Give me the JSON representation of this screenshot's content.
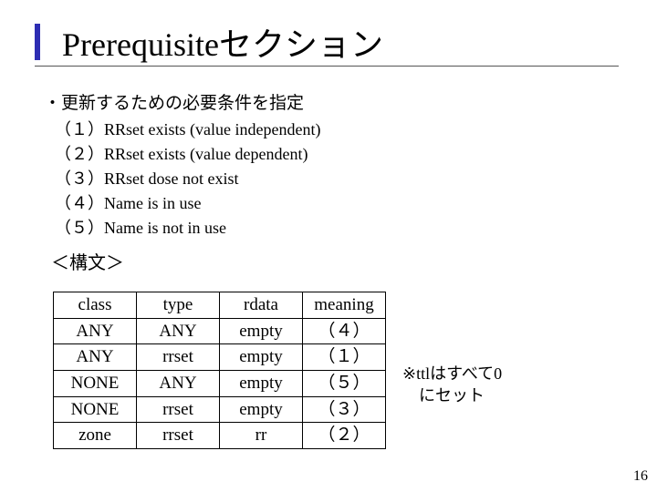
{
  "title": "Prerequisiteセクション",
  "lead": "・更新するための必要条件を指定",
  "items": [
    "（１）RRset exists (value independent)",
    "（２）RRset exists (value dependent)",
    "（３）RRset dose not exist",
    "（４）Name is in use",
    "（５）Name is not in use"
  ],
  "syntax_label": "＜構文＞",
  "table": {
    "columns": [
      "class",
      "type",
      "rdata",
      "meaning"
    ],
    "rows": [
      [
        "ANY",
        "ANY",
        "empty",
        "（４）"
      ],
      [
        "ANY",
        "rrset",
        "empty",
        "（１）"
      ],
      [
        "NONE",
        "ANY",
        "empty",
        "（５）"
      ],
      [
        "NONE",
        "rrset",
        "empty",
        "（３）"
      ],
      [
        "zone",
        "rrset",
        "rr",
        "（２）"
      ]
    ]
  },
  "note_line1": "※ttlはすべて0",
  "note_line2": "　にセット",
  "page_number": "16",
  "colors": {
    "accent_bar": "#2d2db3",
    "underline": "#555555",
    "text": "#000000",
    "background": "#ffffff",
    "border": "#000000"
  }
}
